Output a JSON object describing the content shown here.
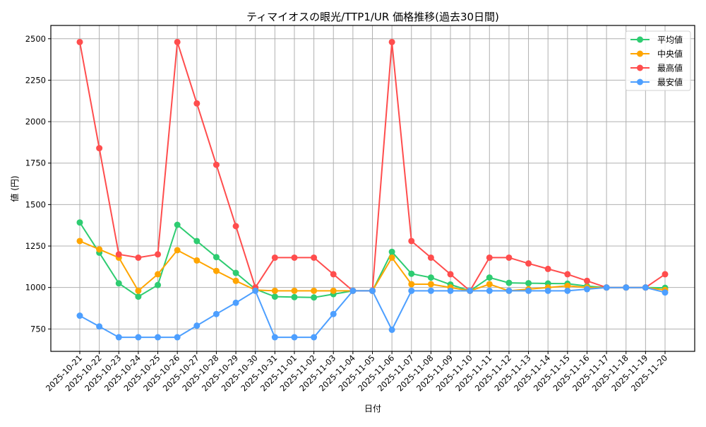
{
  "chart_data": {
    "type": "line",
    "title": "ティマイオスの眼光/TTP1/UR 価格推移(過去30日間)",
    "xlabel": "日付",
    "ylabel": "値 (円)",
    "ylim": [
      615,
      2580
    ],
    "yticks": [
      750,
      1000,
      1250,
      1500,
      1750,
      2000,
      2250,
      2500
    ],
    "grid": true,
    "legend_position": "upper right",
    "x": [
      "2025-10-21",
      "2025-10-22",
      "2025-10-23",
      "2025-10-24",
      "2025-10-25",
      "2025-10-26",
      "2025-10-27",
      "2025-10-28",
      "2025-10-29",
      "2025-10-30",
      "2025-10-31",
      "2025-11-01",
      "2025-11-02",
      "2025-11-03",
      "2025-11-04",
      "2025-11-05",
      "2025-11-06",
      "2025-11-07",
      "2025-11-08",
      "2025-11-09",
      "2025-11-10",
      "2025-11-11",
      "2025-11-12",
      "2025-11-13",
      "2025-11-14",
      "2025-11-15",
      "2025-11-16",
      "2025-11-17",
      "2025-11-18",
      "2025-11-19",
      "2025-11-20"
    ],
    "series": [
      {
        "name": "平均値",
        "color": "#2ecc71",
        "values": [
          1392,
          1210,
          1025,
          945,
          1015,
          1378,
          1280,
          1183,
          1088,
          990,
          945,
          942,
          940,
          960,
          980,
          980,
          1215,
          1083,
          1060,
          1018,
          980,
          1060,
          1028,
          1026,
          1024,
          1023,
          1008,
          1000,
          1000,
          1000,
          998
        ]
      },
      {
        "name": "中央値",
        "color": "#ffa500",
        "values": [
          1280,
          1230,
          1180,
          980,
          1080,
          1225,
          1163,
          1100,
          1040,
          985,
          980,
          980,
          980,
          980,
          980,
          980,
          1180,
          1020,
          1020,
          1000,
          980,
          1020,
          980,
          990,
          1000,
          1010,
          1000,
          1000,
          1000,
          1000,
          985
        ]
      },
      {
        "name": "最高値",
        "color": "#ff4d4d",
        "values": [
          2480,
          1840,
          1200,
          1180,
          1200,
          2480,
          2110,
          1740,
          1370,
          1000,
          1180,
          1180,
          1180,
          1080,
          980,
          980,
          2480,
          1280,
          1180,
          1080,
          980,
          1180,
          1180,
          1145,
          1112,
          1080,
          1040,
          1000,
          1000,
          1000,
          1080
        ]
      },
      {
        "name": "最安値",
        "color": "#4d9fff",
        "values": [
          830,
          765,
          700,
          700,
          700,
          700,
          770,
          840,
          908,
          980,
          700,
          700,
          700,
          840,
          980,
          980,
          745,
          980,
          980,
          980,
          980,
          980,
          980,
          980,
          980,
          980,
          990,
          1000,
          1000,
          1000,
          970
        ]
      }
    ]
  }
}
